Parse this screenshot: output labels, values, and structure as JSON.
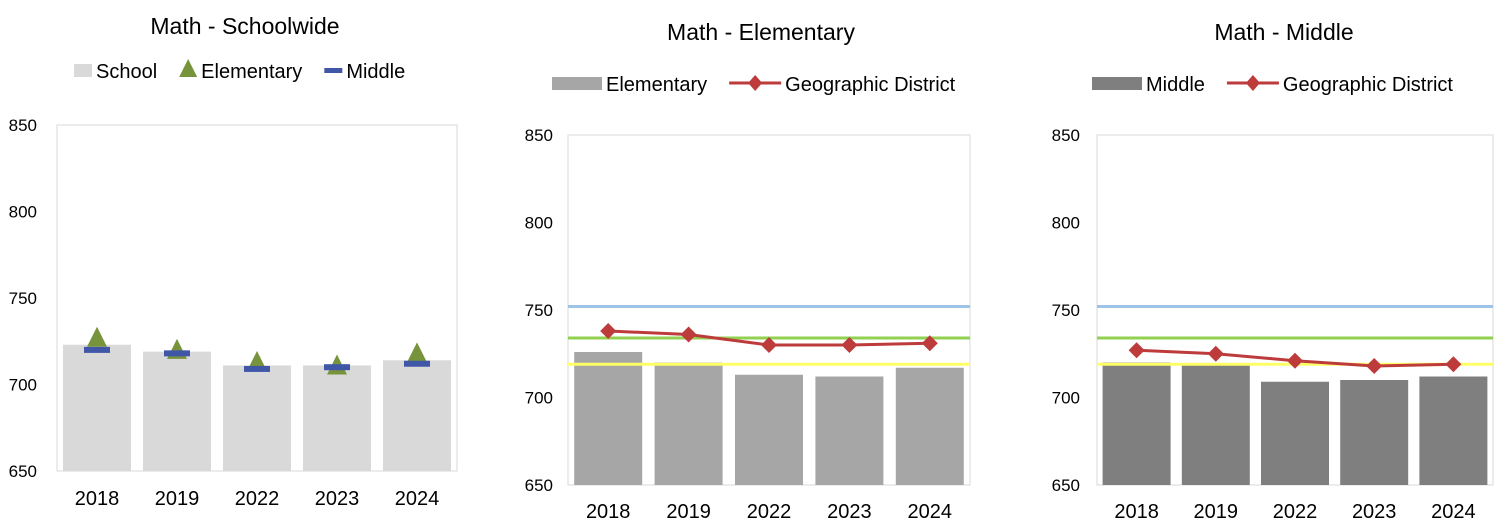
{
  "charts": [
    {
      "type": "bar",
      "title": "Math - Schoolwide",
      "categories": [
        "2018",
        "2019",
        "2022",
        "2023",
        "2024"
      ],
      "ylim": [
        650,
        850
      ],
      "yticks": [
        650,
        700,
        750,
        800,
        850
      ],
      "legend": [
        {
          "label": "School",
          "kind": "bar",
          "color": "#d9d9d9"
        },
        {
          "label": "Elementary",
          "kind": "triangle",
          "color": "#77933c"
        },
        {
          "label": "Middle",
          "kind": "dash",
          "color": "#4057a8"
        }
      ],
      "bars": {
        "name": "School",
        "color": "#d9d9d9",
        "values": [
          723,
          719,
          711,
          711,
          714
        ]
      },
      "triangles": {
        "name": "Elementary",
        "color": "#77933c",
        "values": [
          727,
          720,
          713,
          711,
          718
        ]
      },
      "dashes": {
        "name": "Middle",
        "color": "#4057a8",
        "values": [
          720,
          718,
          709,
          710,
          712
        ]
      },
      "reflines": []
    },
    {
      "type": "bar",
      "title": "Math - Elementary",
      "categories": [
        "2018",
        "2019",
        "2022",
        "2023",
        "2024"
      ],
      "ylim": [
        650,
        850
      ],
      "yticks": [
        650,
        700,
        750,
        800,
        850
      ],
      "legend": [
        {
          "label": "Elementary",
          "kind": "bar",
          "color": "#a6a6a6"
        },
        {
          "label": "Geographic District",
          "kind": "line",
          "color": "#be3b3b"
        }
      ],
      "bars": {
        "name": "Elementary",
        "color": "#a6a6a6",
        "values": [
          726,
          720,
          713,
          712,
          717
        ]
      },
      "line": {
        "name": "Geographic District",
        "color": "#be3b3b",
        "values": [
          738,
          736,
          730,
          730,
          731
        ]
      },
      "reflines": [
        {
          "value": 752,
          "color": "#9dc3e6"
        },
        {
          "value": 734,
          "color": "#92d050"
        },
        {
          "value": 719,
          "color": "#ffff66"
        }
      ]
    },
    {
      "type": "bar",
      "title": "Math - Middle",
      "categories": [
        "2018",
        "2019",
        "2022",
        "2023",
        "2024"
      ],
      "ylim": [
        650,
        850
      ],
      "yticks": [
        650,
        700,
        750,
        800,
        850
      ],
      "legend": [
        {
          "label": "Middle",
          "kind": "bar",
          "color": "#7f7f7f"
        },
        {
          "label": "Geographic District",
          "kind": "line",
          "color": "#be3b3b"
        }
      ],
      "bars": {
        "name": "Middle",
        "color": "#7f7f7f",
        "values": [
          720,
          719,
          709,
          710,
          712
        ]
      },
      "line": {
        "name": "Geographic District",
        "color": "#be3b3b",
        "values": [
          727,
          725,
          721,
          718,
          719
        ]
      },
      "reflines": [
        {
          "value": 752,
          "color": "#9dc3e6"
        },
        {
          "value": 734,
          "color": "#92d050"
        },
        {
          "value": 719,
          "color": "#ffff66"
        }
      ]
    }
  ]
}
